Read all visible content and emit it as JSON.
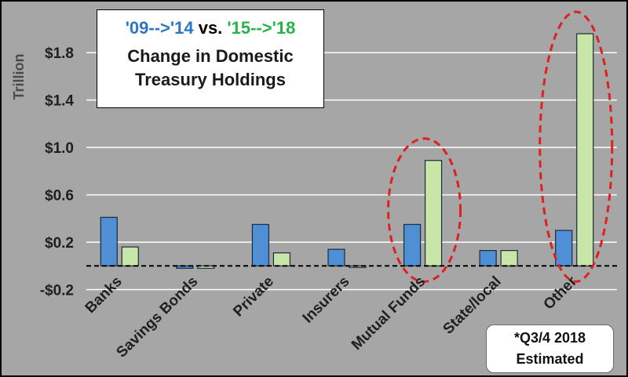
{
  "chart_data": {
    "type": "bar",
    "title": [
      "'09-->'14 vs. '15-->'18",
      "Change in Domestic",
      "Treasury Holdings"
    ],
    "ylabel": "Trillion",
    "xlabel": "",
    "categories": [
      "Banks",
      "Savings Bonds",
      "Private",
      "Insurers",
      "Mutual Funds",
      "State/local",
      "Other"
    ],
    "series": [
      {
        "name": "'09-->'14",
        "color": "#4f8fd6",
        "values": [
          0.41,
          -0.02,
          0.35,
          0.14,
          0.35,
          0.13,
          0.3
        ]
      },
      {
        "name": "'15-->'18",
        "color": "#c8e6a8",
        "values": [
          0.16,
          -0.02,
          0.11,
          -0.01,
          0.89,
          0.13,
          1.96
        ]
      }
    ],
    "ylim": [
      -0.2,
      2.0
    ],
    "yticks": [
      -0.2,
      0.2,
      0.6,
      1.0,
      1.4,
      1.8
    ],
    "ytick_labels": [
      "-$0.2",
      "$0.2",
      "$0.6",
      "$1.0",
      "$1.4",
      "$1.8"
    ],
    "grid": true,
    "zero_line": "dashed",
    "highlighted_categories": [
      "Mutual Funds",
      "Other"
    ],
    "highlight_color": "#e02020"
  },
  "title_box": {
    "line1_part1": "'09-->'14",
    "line1_mid": " vs. ",
    "line1_part2": "'15-->'18",
    "line2": "Change in Domestic",
    "line3": "Treasury Holdings",
    "color1": "#2e75c6",
    "color2": "#26b44a"
  },
  "note": {
    "line1": "*Q3/4 2018",
    "line2": "Estimated"
  }
}
